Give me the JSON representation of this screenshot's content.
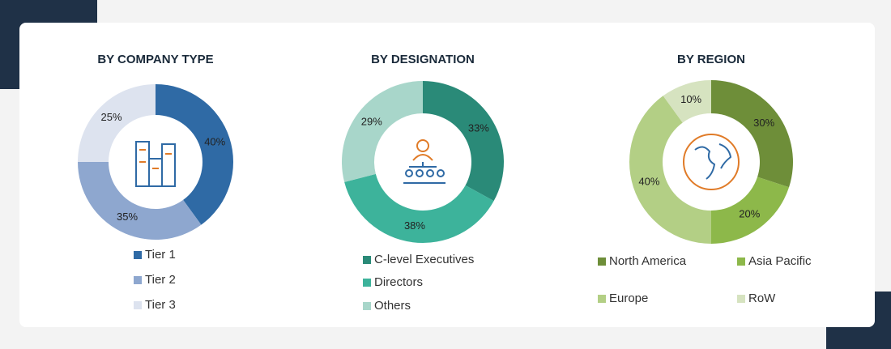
{
  "chart_data": [
    {
      "type": "pie",
      "title": "BY COMPANY TYPE",
      "categories": [
        "Tier 1",
        "Tier 2",
        "Tier 3"
      ],
      "values": [
        40,
        35,
        25
      ],
      "value_labels": [
        "40%",
        "35%",
        "25%"
      ],
      "colors": [
        "#2f6aa5",
        "#8ea7cf",
        "#dde3ef"
      ]
    },
    {
      "type": "pie",
      "title": "BY DESIGNATION",
      "categories": [
        "C-level Executives",
        "Directors",
        "Others"
      ],
      "values": [
        33,
        38,
        29
      ],
      "value_labels": [
        "33%",
        "38%",
        "29%"
      ],
      "colors": [
        "#2a8a78",
        "#3db39b",
        "#a8d6ca"
      ]
    },
    {
      "type": "pie",
      "title": "BY REGION",
      "categories": [
        "North America",
        "Asia Pacific",
        "Europe",
        "RoW"
      ],
      "values": [
        30,
        20,
        40,
        10
      ],
      "value_labels": [
        "30%",
        "20%",
        "40%",
        "10%"
      ],
      "colors": [
        "#6e8e39",
        "#8db84a",
        "#b3cf85",
        "#d6e3c0"
      ]
    }
  ]
}
